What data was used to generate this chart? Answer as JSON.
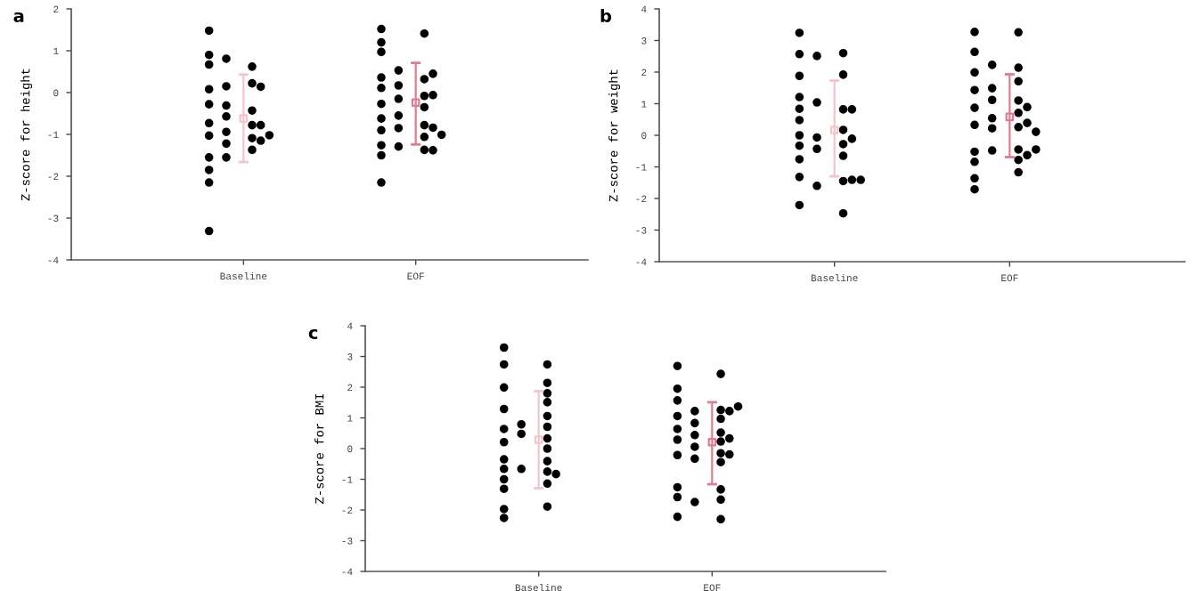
{
  "chart_data": [
    {
      "type": "scatter",
      "title": "a",
      "ylabel": "Z-score for height",
      "categories": [
        "Baseline",
        "EOF"
      ],
      "ylim": [
        -4,
        2
      ],
      "yticks": [
        -4,
        -3,
        -2,
        -1,
        0,
        1,
        2
      ],
      "grid": false,
      "legend": false,
      "series": [
        {
          "color": "#000000",
          "marker": "circle",
          "x": [
            "Baseline",
            "Baseline",
            "Baseline",
            "Baseline",
            "Baseline",
            "Baseline",
            "Baseline",
            "Baseline",
            "Baseline",
            "Baseline",
            "Baseline",
            "Baseline",
            "Baseline",
            "Baseline",
            "Baseline",
            "Baseline",
            "Baseline",
            "Baseline",
            "Baseline",
            "Baseline",
            "Baseline",
            "Baseline",
            "Baseline",
            "Baseline",
            "Baseline",
            "Baseline",
            "Baseline",
            "Baseline"
          ],
          "values": [
            0.9,
            0.08,
            -0.73,
            -0.78,
            -1.03,
            0.67,
            -0.28,
            -0.43,
            -0.94,
            -1.55,
            1.48,
            0.62,
            0.22,
            -1.09,
            -1.15,
            0.81,
            -0.31,
            -0.57,
            -1.22,
            -1.37,
            0.15,
            -0.78,
            -1.02,
            -2.15,
            -3.31,
            0.14,
            -1.55,
            -1.85
          ]
        },
        {
          "color": "#000000",
          "marker": "circle",
          "x": [
            "EOF",
            "EOF",
            "EOF",
            "EOF",
            "EOF",
            "EOF",
            "EOF",
            "EOF",
            "EOF",
            "EOF",
            "EOF",
            "EOF",
            "EOF",
            "EOF",
            "EOF",
            "EOF",
            "EOF",
            "EOF",
            "EOF",
            "EOF",
            "EOF",
            "EOF",
            "EOF",
            "EOF",
            "EOF",
            "EOF",
            "EOF",
            "EOF",
            "EOF"
          ],
          "values": [
            1.52,
            0.36,
            -0.27,
            -0.62,
            -0.9,
            0.32,
            0.17,
            -0.08,
            -0.15,
            -0.78,
            1.41,
            0.53,
            -0.35,
            -1.5,
            0.11,
            -0.06,
            -0.85,
            -1.06,
            -1.37,
            0.97,
            -0.84,
            -1.01,
            -1.26,
            -2.15,
            1.2,
            0.45,
            -0.55,
            -1.29,
            -1.38
          ]
        },
        {
          "marker": "square",
          "x": [
            "Baseline",
            "EOF"
          ],
          "values": [
            -0.62,
            -0.24
          ],
          "errors": [
            [
              -1.66,
              0.43
            ],
            [
              -1.24,
              0.71
            ]
          ],
          "colors": [
            "#f4c4cc",
            "#e07c8c"
          ]
        }
      ]
    },
    {
      "type": "scatter",
      "title": "b",
      "ylabel": "Z-score for weight",
      "categories": [
        "Baseline",
        "EOF"
      ],
      "ylim": [
        -4,
        4
      ],
      "yticks": [
        -4,
        -3,
        -2,
        -1,
        0,
        1,
        2,
        3,
        4
      ],
      "grid": false,
      "legend": false,
      "series": [
        {
          "color": "#000000",
          "marker": "circle",
          "x": [
            "Baseline",
            "Baseline",
            "Baseline",
            "Baseline",
            "Baseline",
            "Baseline",
            "Baseline",
            "Baseline",
            "Baseline",
            "Baseline",
            "Baseline",
            "Baseline",
            "Baseline",
            "Baseline",
            "Baseline",
            "Baseline",
            "Baseline",
            "Baseline",
            "Baseline",
            "Baseline",
            "Baseline",
            "Baseline",
            "Baseline",
            "Baseline",
            "Baseline",
            "Baseline",
            "Baseline",
            "Baseline"
          ],
          "values": [
            1.88,
            0.84,
            0,
            -0.76,
            -1.32,
            2.57,
            0.82,
            -0.65,
            -1.45,
            -1.6,
            0.48,
            0.17,
            -0.07,
            -2.21,
            2.6,
            2.51,
            1.04,
            0.82,
            -1.41,
            3.24,
            1.21,
            -0.28,
            -0.33,
            -2.47,
            1.92,
            -0.11,
            -0.43,
            -1.41
          ]
        },
        {
          "color": "#000000",
          "marker": "circle",
          "x": [
            "EOF",
            "EOF",
            "EOF",
            "EOF",
            "EOF",
            "EOF",
            "EOF",
            "EOF",
            "EOF",
            "EOF",
            "EOF",
            "EOF",
            "EOF",
            "EOF",
            "EOF",
            "EOF",
            "EOF",
            "EOF",
            "EOF",
            "EOF",
            "EOF",
            "EOF",
            "EOF",
            "EOF",
            "EOF",
            "EOF",
            "EOF",
            "EOF",
            "EOF",
            "EOF"
          ],
          "values": [
            1.99,
            1.71,
            0.87,
            -0.52,
            -0.78,
            3.27,
            1.43,
            0.33,
            0.26,
            -1.71,
            1.1,
            0.54,
            -0.45,
            -0.84,
            -1.36,
            2.64,
            2.14,
            1.49,
            0.22,
            -0.48,
            2.23,
            0.71,
            0.39,
            -0.63,
            -1.17,
            3.26,
            1.12,
            0.89,
            0.11,
            -0.45
          ]
        },
        {
          "marker": "square",
          "x": [
            "Baseline",
            "EOF"
          ],
          "values": [
            0.17,
            0.58
          ],
          "errors": [
            [
              -1.3,
              1.73
            ],
            [
              -0.69,
              1.93
            ]
          ],
          "colors": [
            "#f4c4cc",
            "#e07c8c"
          ]
        }
      ]
    },
    {
      "type": "scatter",
      "title": "c",
      "ylabel": "Z-score for BMI",
      "categories": [
        "Baseline",
        "EOF"
      ],
      "ylim": [
        -4,
        4
      ],
      "yticks": [
        -4,
        -3,
        -2,
        -1,
        0,
        1,
        2,
        3,
        4
      ],
      "grid": false,
      "legend": false,
      "series": [
        {
          "color": "#000000",
          "marker": "circle",
          "x": [
            "Baseline",
            "Baseline",
            "Baseline",
            "Baseline",
            "Baseline",
            "Baseline",
            "Baseline",
            "Baseline",
            "Baseline",
            "Baseline",
            "Baseline",
            "Baseline",
            "Baseline",
            "Baseline",
            "Baseline",
            "Baseline",
            "Baseline",
            "Baseline",
            "Baseline",
            "Baseline",
            "Baseline",
            "Baseline",
            "Baseline",
            "Baseline",
            "Baseline",
            "Baseline",
            "Baseline",
            "Baseline"
          ],
          "values": [
            2.74,
            1.29,
            0.21,
            -1.31,
            -1.97,
            3.29,
            0.64,
            -0.66,
            -1.0,
            -1.89,
            0.71,
            0.48,
            -0.41,
            -1.14,
            -2.26,
            2.74,
            1.99,
            1.8,
            1.06,
            -0.75,
            2.14,
            1.51,
            0.33,
            -0.35,
            -0.66,
            0.79,
            0,
            -0.83
          ]
        },
        {
          "color": "#000000",
          "marker": "circle",
          "x": [
            "EOF",
            "EOF",
            "EOF",
            "EOF",
            "EOF",
            "EOF",
            "EOF",
            "EOF",
            "EOF",
            "EOF",
            "EOF",
            "EOF",
            "EOF",
            "EOF",
            "EOF",
            "EOF",
            "EOF",
            "EOF",
            "EOF",
            "EOF",
            "EOF",
            "EOF",
            "EOF",
            "EOF",
            "EOF",
            "EOF",
            "EOF",
            "EOF",
            "EOF",
            "EOF"
          ],
          "values": [
            2.69,
            1.06,
            0.64,
            -1.58,
            -2.22,
            1.95,
            0.97,
            -0.21,
            -0.44,
            -2.3,
            0.52,
            0.29,
            -0.15,
            -1.66,
            -1.74,
            2.43,
            1.57,
            1.22,
            0.44,
            -1.33,
            1.26,
            1.22,
            0.23,
            0.06,
            -1.26,
            1.37,
            0.83,
            0.33,
            -0.19,
            -0.33
          ]
        },
        {
          "marker": "square",
          "x": [
            "Baseline",
            "EOF"
          ],
          "values": [
            0.29,
            0.21
          ],
          "errors": [
            [
              -1.29,
              1.87
            ],
            [
              -1.16,
              1.51
            ]
          ],
          "colors": [
            "#f4c4cc",
            "#e07c8c"
          ]
        }
      ]
    }
  ]
}
